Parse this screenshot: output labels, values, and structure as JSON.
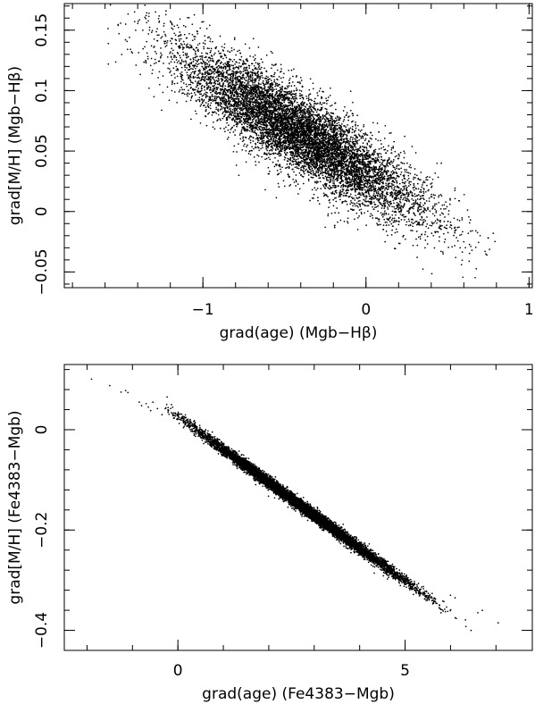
{
  "chart_data": [
    {
      "type": "scatter",
      "xlabel": "grad(age) (Mgb−Hβ)",
      "ylabel": "grad[M/H] (Mgb−Hβ)",
      "xlim": [
        -1.85,
        1.02
      ],
      "ylim": [
        -0.063,
        0.172
      ],
      "xticks": [
        -1,
        0,
        1
      ],
      "xtick_labels": [
        "−1",
        "0",
        "1"
      ],
      "yticks": [
        -0.05,
        0,
        0.05,
        0.1,
        0.15
      ],
      "ytick_labels": [
        "−0.05",
        "0",
        "0.05",
        "0.1",
        "0.15"
      ],
      "grid": false,
      "legend": "none",
      "cloud": {
        "n_points": 9000,
        "x_mean": -0.4,
        "x_sd": 0.37,
        "slope": -0.081,
        "intercept": 0.032,
        "noise_sd": 0.017,
        "x_range": [
          -1.6,
          0.8
        ]
      },
      "points": [
        {
          "x": -1.52,
          "y": 0.154
        },
        {
          "x": -1.58,
          "y": 0.139
        },
        {
          "x": -1.58,
          "y": 0.122
        },
        {
          "x": -1.45,
          "y": 0.144
        },
        {
          "x": -1.41,
          "y": 0.121
        },
        {
          "x": -1.35,
          "y": 0.124
        },
        {
          "x": -1.33,
          "y": 0.102
        },
        {
          "x": -1.3,
          "y": 0.095
        },
        {
          "x": -1.27,
          "y": 0.146
        },
        {
          "x": -1.2,
          "y": 0.141
        },
        {
          "x": -1.15,
          "y": 0.145
        },
        {
          "x": -1.1,
          "y": 0.136
        },
        {
          "x": -1.02,
          "y": 0.139
        },
        {
          "x": -0.98,
          "y": 0.131
        },
        {
          "x": -0.85,
          "y": 0.12
        },
        {
          "x": 0.6,
          "y": -0.025
        },
        {
          "x": 0.65,
          "y": -0.032
        },
        {
          "x": 0.7,
          "y": -0.02
        },
        {
          "x": 0.75,
          "y": -0.022
        },
        {
          "x": 0.78,
          "y": -0.018
        },
        {
          "x": 0.55,
          "y": -0.038
        },
        {
          "x": 0.46,
          "y": -0.033
        },
        {
          "x": 0.73,
          "y": -0.033
        },
        {
          "x": -0.25,
          "y": -0.013
        },
        {
          "x": -0.05,
          "y": -0.015
        },
        {
          "x": -0.78,
          "y": 0.03
        }
      ]
    },
    {
      "type": "scatter",
      "xlabel": "grad(age) (Fe4383−Mgb)",
      "ylabel": "grad[M/H] (Fe4383−Mgb)",
      "xlim": [
        -2.5,
        7.8
      ],
      "ylim": [
        -0.44,
        0.13
      ],
      "xticks": [
        0,
        5
      ],
      "xtick_labels": [
        "0",
        "5"
      ],
      "yticks": [
        -0.4,
        -0.2,
        0
      ],
      "ytick_labels": [
        "−0.4",
        "−0.2",
        "0"
      ],
      "grid": false,
      "legend": "none",
      "cloud": {
        "n_points": 9000,
        "x_mean": 2.7,
        "x_sd": 1.15,
        "slope": -0.0655,
        "intercept": 0.026,
        "noise_sd": 0.006,
        "x_range": [
          -0.3,
          6.5
        ]
      },
      "points": [
        {
          "x": -1.9,
          "y": 0.101
        },
        {
          "x": -1.5,
          "y": 0.088
        },
        {
          "x": -1.25,
          "y": 0.075
        },
        {
          "x": -1.15,
          "y": 0.078
        },
        {
          "x": -1.1,
          "y": 0.074
        },
        {
          "x": -0.85,
          "y": 0.055
        },
        {
          "x": -0.8,
          "y": 0.048
        },
        {
          "x": -0.7,
          "y": 0.052
        },
        {
          "x": -0.65,
          "y": 0.045
        },
        {
          "x": -0.55,
          "y": 0.055
        },
        {
          "x": -0.6,
          "y": 0.038
        },
        {
          "x": -0.45,
          "y": 0.042
        },
        {
          "x": -0.35,
          "y": 0.03
        },
        {
          "x": 6.0,
          "y": -0.33
        },
        {
          "x": 6.1,
          "y": -0.335
        },
        {
          "x": 6.6,
          "y": -0.365
        },
        {
          "x": 6.7,
          "y": -0.36
        },
        {
          "x": 7.05,
          "y": -0.385
        }
      ]
    }
  ]
}
